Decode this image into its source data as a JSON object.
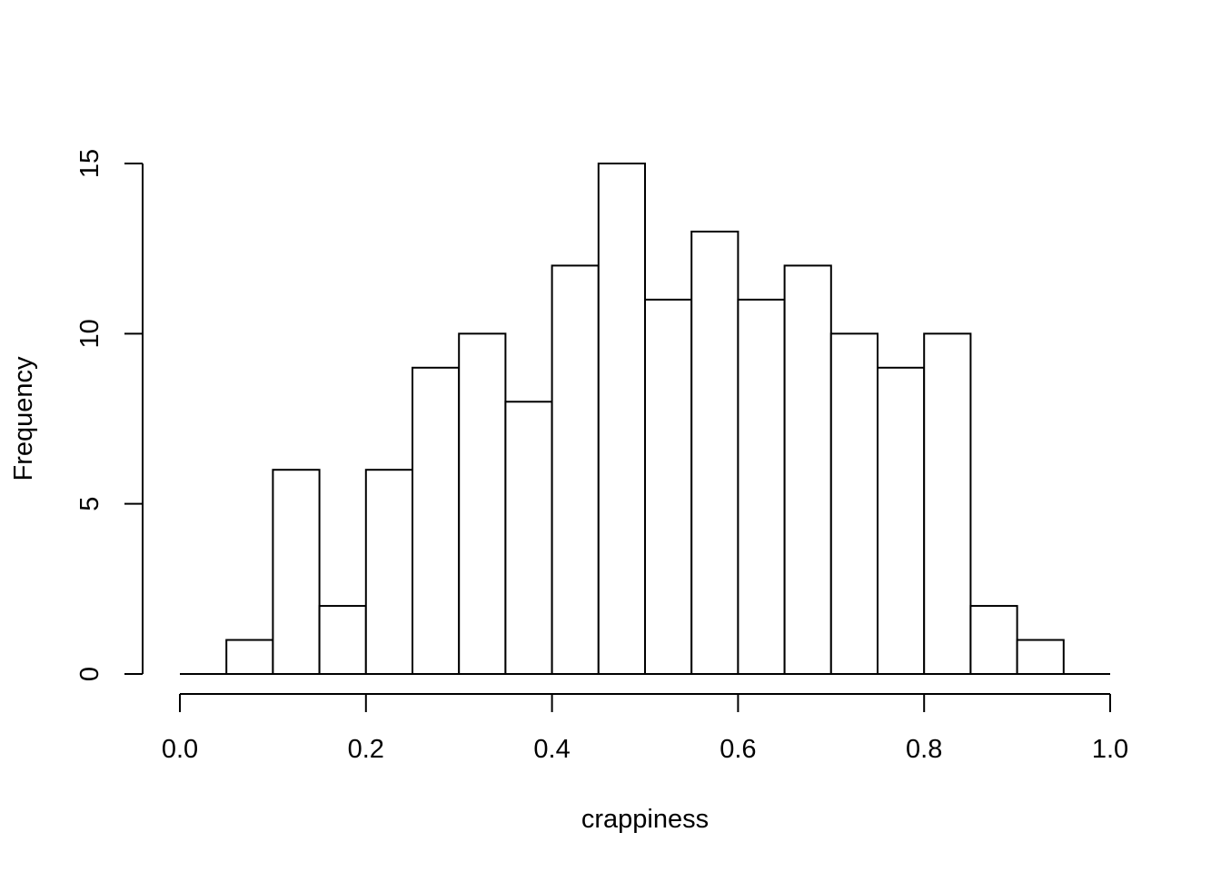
{
  "chart_data": {
    "type": "bar",
    "histogram": true,
    "title": "",
    "xlabel": "crappiness",
    "ylabel": "Frequency",
    "bin_width": 0.05,
    "bin_starts": [
      0.05,
      0.1,
      0.15,
      0.2,
      0.25,
      0.3,
      0.35,
      0.4,
      0.45,
      0.5,
      0.55,
      0.6,
      0.65,
      0.7,
      0.75,
      0.8,
      0.85,
      0.9
    ],
    "values": [
      1,
      6,
      2,
      6,
      9,
      10,
      8,
      12,
      15,
      11,
      13,
      11,
      12,
      10,
      9,
      10,
      2,
      1
    ],
    "xlim": [
      0.0,
      1.0
    ],
    "ylim": [
      0,
      15
    ],
    "x_ticks": [
      0.0,
      0.2,
      0.4,
      0.6,
      0.8,
      1.0
    ],
    "x_tick_labels": [
      "0.0",
      "0.2",
      "0.4",
      "0.6",
      "0.8",
      "1.0"
    ],
    "y_ticks": [
      0,
      5,
      10,
      15
    ],
    "y_tick_labels": [
      "0",
      "5",
      "10",
      "15"
    ],
    "grid": false,
    "legend": "none",
    "bar_fill": "#ffffff",
    "bar_stroke": "#000000"
  }
}
